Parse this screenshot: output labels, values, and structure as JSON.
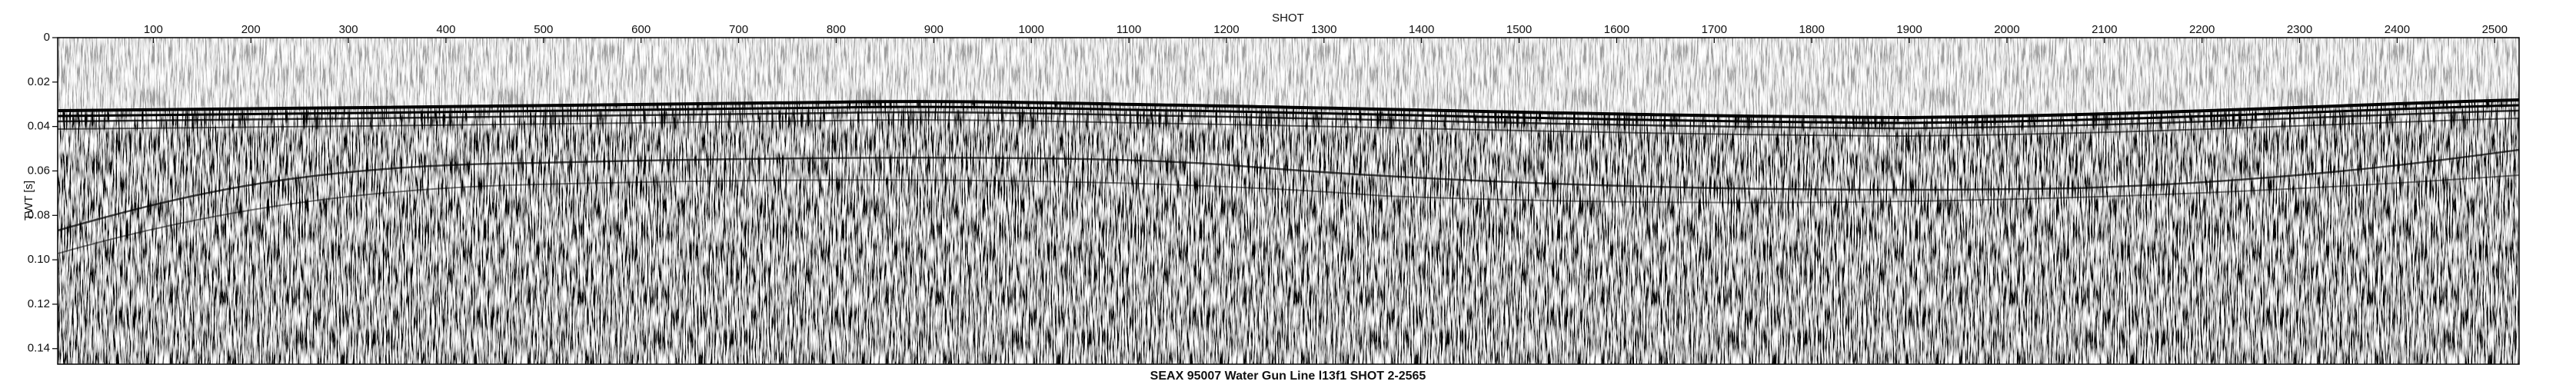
{
  "chart_data": {
    "type": "seismic",
    "title": "SEAX 95007 Water Gun Line l13f1 SHOT 2-2565",
    "xlabel": "SHOT",
    "ylabel": "TWT [s]",
    "xlim": [
      2,
      2525
    ],
    "xticks": [
      100,
      200,
      300,
      400,
      500,
      600,
      700,
      800,
      900,
      1000,
      1100,
      1200,
      1300,
      1400,
      1500,
      1600,
      1700,
      1800,
      1900,
      2000,
      2100,
      2200,
      2300,
      2400,
      2500
    ],
    "ylim": [
      0,
      0.147
    ],
    "yticks": [
      0,
      0.02,
      0.04,
      0.06,
      0.08,
      {
        "value": 0.1,
        "label": "0.10"
      },
      0.12,
      0.14
    ],
    "y_inverted": true
  }
}
